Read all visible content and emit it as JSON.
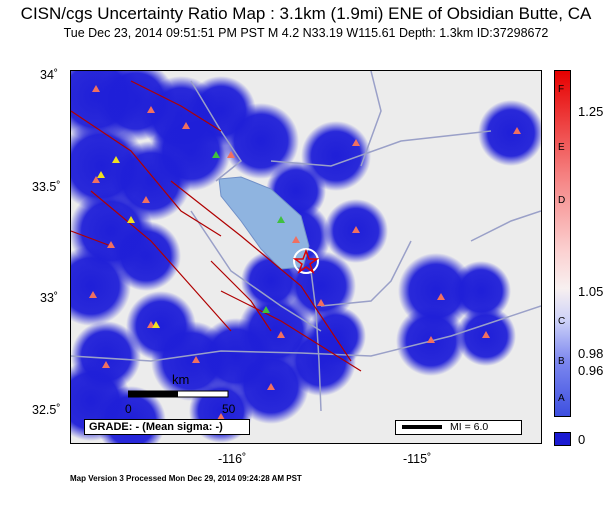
{
  "header": {
    "title": "CISN/cgs Uncertainty Ratio Map : 3.1km (1.9mi) ENE of Obsidian Butte, CA",
    "subtitle": "Tue Dec 23, 2014 09:51:51 PM PST   M 4.2   N33.19 W115.61   Depth: 1.3km   ID:37298672"
  },
  "axes": {
    "lat_ticks": [
      "34˚",
      "33.5˚",
      "33˚",
      "32.5˚"
    ],
    "lon_ticks": [
      "-116˚",
      "-115˚"
    ]
  },
  "legend": {
    "grade": "GRADE: - (Mean sigma: -)",
    "mi": "MI = 6.0",
    "scale_unit": "km",
    "scale_0": "0",
    "scale_50": "50"
  },
  "colorbar": {
    "letters": [
      "F",
      "E",
      "D",
      "C",
      "B",
      "A"
    ],
    "values": [
      "1.25",
      "1.05",
      "0.98",
      "0.96",
      "0"
    ],
    "colors": {
      "top": "#e60000",
      "mid": "#f8f0f0",
      "low": "#3d4fe0",
      "zero": "#1a1ad2"
    }
  },
  "footer": "Map Version 3 Processed Mon Dec 29, 2014 09:24:28 AM PST",
  "colors": {
    "coverage": "#1f1fd8",
    "land": "#ececec",
    "lake": "#8fb4e0",
    "faults": "#b00000",
    "roads": "#9aa0c8"
  }
}
